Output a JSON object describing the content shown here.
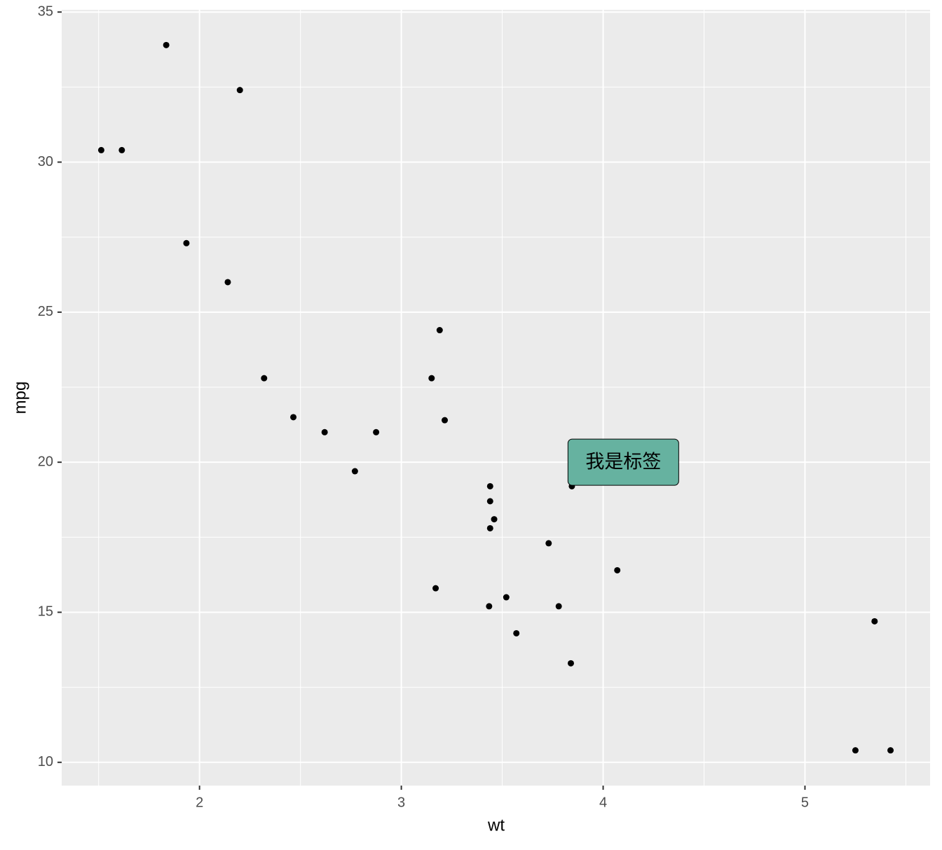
{
  "chart_data": {
    "type": "scatter",
    "x_label": "wt",
    "y_label": "mpg",
    "x": [
      2.62,
      2.875,
      2.32,
      3.215,
      3.44,
      3.46,
      3.57,
      3.19,
      3.15,
      3.44,
      3.44,
      4.07,
      3.73,
      3.78,
      5.25,
      5.424,
      5.345,
      2.2,
      1.615,
      1.835,
      2.465,
      3.52,
      3.435,
      3.84,
      3.845,
      1.935,
      2.14,
      1.513,
      3.17,
      2.77
    ],
    "series": [
      {
        "color": "#000000",
        "values": [
          21.0,
          21.0,
          22.8,
          21.4,
          18.7,
          18.1,
          14.3,
          24.4,
          22.8,
          19.2,
          17.8,
          16.4,
          17.3,
          15.2,
          10.4,
          10.4,
          14.7,
          32.4,
          30.4,
          33.9,
          21.5,
          15.5,
          15.2,
          13.3,
          19.2,
          27.3,
          26.0,
          30.4,
          15.8,
          19.7
        ]
      }
    ],
    "xlim": [
      1.317,
      5.62
    ],
    "ylim": [
      9.225,
      35.075
    ],
    "xticks": [
      2,
      3,
      4,
      5
    ],
    "yticks": [
      10,
      15,
      20,
      25,
      30,
      35
    ],
    "x_minor_breaks": [
      1.5,
      2.5,
      3.5,
      4.5,
      5.5
    ],
    "y_minor_breaks": [
      12.5,
      17.5,
      22.5,
      27.5,
      32.5
    ],
    "grid": true,
    "annotation": {
      "text": "我是标签",
      "x": 4.1,
      "y": 20,
      "fill": "#66b2a0"
    }
  }
}
